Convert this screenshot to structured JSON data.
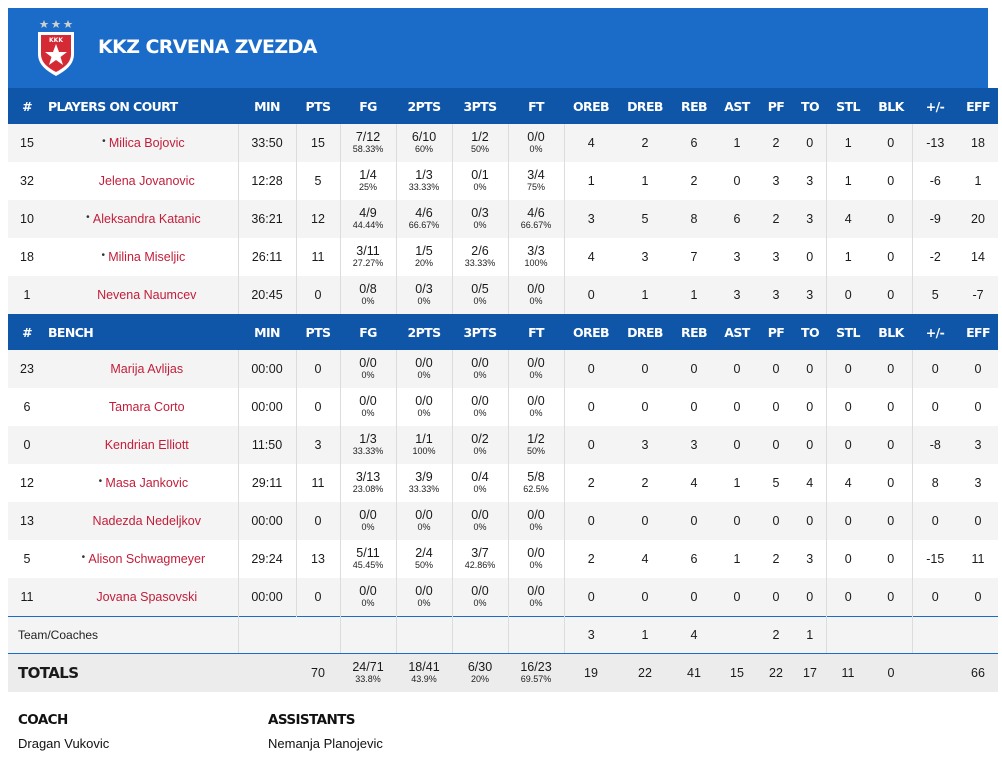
{
  "team": {
    "name": "KKZ CRVENA ZVEZDA",
    "logo_text": "KKK",
    "brand_color": "#1b6cc8",
    "header_color": "#0f55a8",
    "name_color": "#c21e3a"
  },
  "columns": [
    "#",
    "PLAYERS ON COURT",
    "MIN",
    "PTS",
    "FG",
    "2PTS",
    "3PTS",
    "FT",
    "OREB",
    "DREB",
    "REB",
    "AST",
    "PF",
    "TO",
    "STL",
    "BLK",
    "+/-",
    "EFF"
  ],
  "bench_label": "BENCH",
  "starters": [
    {
      "no": "15",
      "name": "Milica Bojovic",
      "dot": true,
      "min": "33:50",
      "pts": "15",
      "fg": "7/12",
      "fg_pct": "58.33%",
      "p2": "6/10",
      "p2_pct": "60%",
      "p3": "1/2",
      "p3_pct": "50%",
      "ft": "0/0",
      "ft_pct": "0%",
      "oreb": "4",
      "dreb": "2",
      "reb": "6",
      "ast": "1",
      "pf": "2",
      "to": "0",
      "stl": "1",
      "blk": "0",
      "pm": "-13",
      "eff": "18"
    },
    {
      "no": "32",
      "name": "Jelena Jovanovic",
      "dot": false,
      "min": "12:28",
      "pts": "5",
      "fg": "1/4",
      "fg_pct": "25%",
      "p2": "1/3",
      "p2_pct": "33.33%",
      "p3": "0/1",
      "p3_pct": "0%",
      "ft": "3/4",
      "ft_pct": "75%",
      "oreb": "1",
      "dreb": "1",
      "reb": "2",
      "ast": "0",
      "pf": "3",
      "to": "3",
      "stl": "1",
      "blk": "0",
      "pm": "-6",
      "eff": "1"
    },
    {
      "no": "10",
      "name": "Aleksandra Katanic",
      "dot": true,
      "min": "36:21",
      "pts": "12",
      "fg": "4/9",
      "fg_pct": "44.44%",
      "p2": "4/6",
      "p2_pct": "66.67%",
      "p3": "0/3",
      "p3_pct": "0%",
      "ft": "4/6",
      "ft_pct": "66.67%",
      "oreb": "3",
      "dreb": "5",
      "reb": "8",
      "ast": "6",
      "pf": "2",
      "to": "3",
      "stl": "4",
      "blk": "0",
      "pm": "-9",
      "eff": "20"
    },
    {
      "no": "18",
      "name": "Milina Miseljic",
      "dot": true,
      "min": "26:11",
      "pts": "11",
      "fg": "3/11",
      "fg_pct": "27.27%",
      "p2": "1/5",
      "p2_pct": "20%",
      "p3": "2/6",
      "p3_pct": "33.33%",
      "ft": "3/3",
      "ft_pct": "100%",
      "oreb": "4",
      "dreb": "3",
      "reb": "7",
      "ast": "3",
      "pf": "3",
      "to": "0",
      "stl": "1",
      "blk": "0",
      "pm": "-2",
      "eff": "14"
    },
    {
      "no": "1",
      "name": "Nevena Naumcev",
      "dot": false,
      "min": "20:45",
      "pts": "0",
      "fg": "0/8",
      "fg_pct": "0%",
      "p2": "0/3",
      "p2_pct": "0%",
      "p3": "0/5",
      "p3_pct": "0%",
      "ft": "0/0",
      "ft_pct": "0%",
      "oreb": "0",
      "dreb": "1",
      "reb": "1",
      "ast": "3",
      "pf": "3",
      "to": "3",
      "stl": "0",
      "blk": "0",
      "pm": "5",
      "eff": "-7"
    }
  ],
  "bench": [
    {
      "no": "23",
      "name": "Marija Avlijas",
      "dot": false,
      "min": "00:00",
      "pts": "0",
      "fg": "0/0",
      "fg_pct": "0%",
      "p2": "0/0",
      "p2_pct": "0%",
      "p3": "0/0",
      "p3_pct": "0%",
      "ft": "0/0",
      "ft_pct": "0%",
      "oreb": "0",
      "dreb": "0",
      "reb": "0",
      "ast": "0",
      "pf": "0",
      "to": "0",
      "stl": "0",
      "blk": "0",
      "pm": "0",
      "eff": "0"
    },
    {
      "no": "6",
      "name": "Tamara Corto",
      "dot": false,
      "min": "00:00",
      "pts": "0",
      "fg": "0/0",
      "fg_pct": "0%",
      "p2": "0/0",
      "p2_pct": "0%",
      "p3": "0/0",
      "p3_pct": "0%",
      "ft": "0/0",
      "ft_pct": "0%",
      "oreb": "0",
      "dreb": "0",
      "reb": "0",
      "ast": "0",
      "pf": "0",
      "to": "0",
      "stl": "0",
      "blk": "0",
      "pm": "0",
      "eff": "0"
    },
    {
      "no": "0",
      "name": "Kendrian Elliott",
      "dot": false,
      "min": "11:50",
      "pts": "3",
      "fg": "1/3",
      "fg_pct": "33.33%",
      "p2": "1/1",
      "p2_pct": "100%",
      "p3": "0/2",
      "p3_pct": "0%",
      "ft": "1/2",
      "ft_pct": "50%",
      "oreb": "0",
      "dreb": "3",
      "reb": "3",
      "ast": "0",
      "pf": "0",
      "to": "0",
      "stl": "0",
      "blk": "0",
      "pm": "-8",
      "eff": "3"
    },
    {
      "no": "12",
      "name": "Masa Jankovic",
      "dot": true,
      "min": "29:11",
      "pts": "11",
      "fg": "3/13",
      "fg_pct": "23.08%",
      "p2": "3/9",
      "p2_pct": "33.33%",
      "p3": "0/4",
      "p3_pct": "0%",
      "ft": "5/8",
      "ft_pct": "62.5%",
      "oreb": "2",
      "dreb": "2",
      "reb": "4",
      "ast": "1",
      "pf": "5",
      "to": "4",
      "stl": "4",
      "blk": "0",
      "pm": "8",
      "eff": "3"
    },
    {
      "no": "13",
      "name": "Nadezda Nedeljkov",
      "dot": false,
      "min": "00:00",
      "pts": "0",
      "fg": "0/0",
      "fg_pct": "0%",
      "p2": "0/0",
      "p2_pct": "0%",
      "p3": "0/0",
      "p3_pct": "0%",
      "ft": "0/0",
      "ft_pct": "0%",
      "oreb": "0",
      "dreb": "0",
      "reb": "0",
      "ast": "0",
      "pf": "0",
      "to": "0",
      "stl": "0",
      "blk": "0",
      "pm": "0",
      "eff": "0"
    },
    {
      "no": "5",
      "name": "Alison Schwagmeyer",
      "dot": true,
      "min": "29:24",
      "pts": "13",
      "fg": "5/11",
      "fg_pct": "45.45%",
      "p2": "2/4",
      "p2_pct": "50%",
      "p3": "3/7",
      "p3_pct": "42.86%",
      "ft": "0/0",
      "ft_pct": "0%",
      "oreb": "2",
      "dreb": "4",
      "reb": "6",
      "ast": "1",
      "pf": "2",
      "to": "3",
      "stl": "0",
      "blk": "0",
      "pm": "-15",
      "eff": "11"
    },
    {
      "no": "11",
      "name": "Jovana Spasovski",
      "dot": false,
      "min": "00:00",
      "pts": "0",
      "fg": "0/0",
      "fg_pct": "0%",
      "p2": "0/0",
      "p2_pct": "0%",
      "p3": "0/0",
      "p3_pct": "0%",
      "ft": "0/0",
      "ft_pct": "0%",
      "oreb": "0",
      "dreb": "0",
      "reb": "0",
      "ast": "0",
      "pf": "0",
      "to": "0",
      "stl": "0",
      "blk": "0",
      "pm": "0",
      "eff": "0"
    }
  ],
  "team_coaches": {
    "label": "Team/Coaches",
    "oreb": "3",
    "dreb": "1",
    "reb": "4",
    "pf": "2",
    "to": "1"
  },
  "totals": {
    "label": "TOTALS",
    "pts": "70",
    "fg": "24/71",
    "fg_pct": "33.8%",
    "p2": "18/41",
    "p2_pct": "43.9%",
    "p3": "6/30",
    "p3_pct": "20%",
    "ft": "16/23",
    "ft_pct": "69.57%",
    "oreb": "19",
    "dreb": "22",
    "reb": "41",
    "ast": "15",
    "pf": "22",
    "to": "17",
    "stl": "11",
    "blk": "0",
    "pm": "",
    "eff": "66"
  },
  "coach": {
    "label": "COACH",
    "name": "Dragan Vukovic"
  },
  "assistants": {
    "label": "ASSISTANTS",
    "name": "Nemanja Planojevic"
  }
}
